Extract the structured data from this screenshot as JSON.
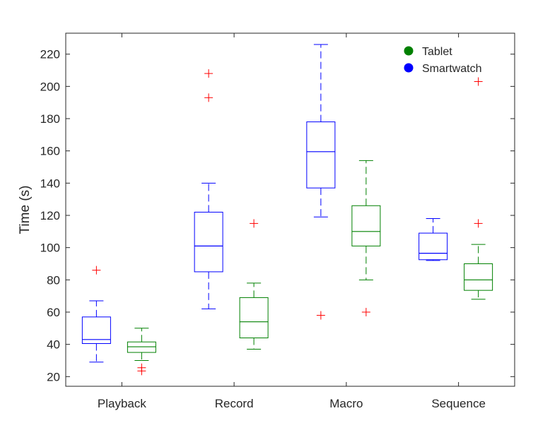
{
  "chart_data": {
    "type": "boxplot",
    "title": "",
    "xlabel": "",
    "ylabel": "Time (s)",
    "ylim": [
      14,
      233
    ],
    "yticks": [
      20,
      40,
      60,
      80,
      100,
      120,
      140,
      160,
      180,
      200,
      220
    ],
    "categories": [
      "Playback",
      "Record",
      "Macro",
      "Sequence"
    ],
    "series": [
      {
        "name": "Smartwatch",
        "color": "#0000FF",
        "boxes": [
          {
            "category": "Playback",
            "whisker_low": 29,
            "q1": 40.5,
            "median": 43,
            "q3": 57,
            "whisker_high": 67,
            "outliers": [
              86
            ]
          },
          {
            "category": "Record",
            "whisker_low": 62,
            "q1": 85,
            "median": 101,
            "q3": 122,
            "whisker_high": 140,
            "outliers": [
              193,
              208
            ]
          },
          {
            "category": "Macro",
            "whisker_low": 119,
            "q1": 137,
            "median": 159.5,
            "q3": 178,
            "whisker_high": 226,
            "outliers": [
              58
            ]
          },
          {
            "category": "Sequence",
            "whisker_low": 92,
            "q1": 92.5,
            "median": 96.5,
            "q3": 109,
            "whisker_high": 118,
            "outliers": []
          }
        ]
      },
      {
        "name": "Tablet",
        "color": "#008000",
        "boxes": [
          {
            "category": "Playback",
            "whisker_low": 30,
            "q1": 35,
            "median": 38.5,
            "q3": 41.5,
            "whisker_high": 50,
            "outliers": [
              23.5,
              25.5
            ]
          },
          {
            "category": "Record",
            "whisker_low": 37,
            "q1": 44,
            "median": 54,
            "q3": 69,
            "whisker_high": 78,
            "outliers": [
              115
            ]
          },
          {
            "category": "Macro",
            "whisker_low": 80,
            "q1": 101,
            "median": 110,
            "q3": 126,
            "whisker_high": 154,
            "outliers": [
              60
            ]
          },
          {
            "category": "Sequence",
            "whisker_low": 68,
            "q1": 73.5,
            "median": 80,
            "q3": 90,
            "whisker_high": 102,
            "outliers": [
              115,
              203
            ]
          }
        ]
      }
    ],
    "outlier_color": "#FF0000",
    "legend": {
      "position": "top-right",
      "entries": [
        {
          "label": "Tablet",
          "color": "#008000"
        },
        {
          "label": "Smartwatch",
          "color": "#0000FF"
        }
      ]
    },
    "grid": false
  }
}
